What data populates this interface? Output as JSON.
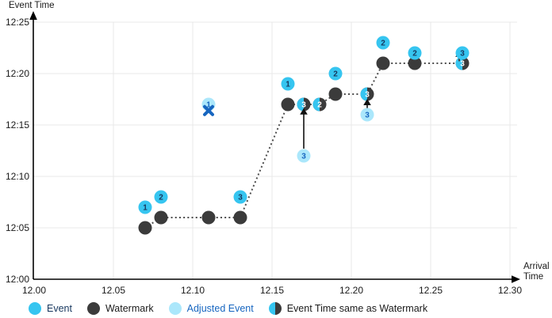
{
  "colors": {
    "event": "#36c5f0",
    "adjusted_event": "#abe7fb",
    "watermark": "#3b3b3b",
    "number_navy": "#17375e",
    "blue": "#1766c0",
    "grid": "#e8e8e8",
    "axis": "#000000",
    "dotted_line": "#4d4d4d",
    "text": "#1a1a1a"
  },
  "legend": {
    "items": [
      {
        "name": "event",
        "label": "Event",
        "label_color": "#17375e"
      },
      {
        "name": "watermark",
        "label": "Watermark",
        "label_color": "#1a1a1a"
      },
      {
        "name": "adjusted-event",
        "label": "Adjusted Event",
        "label_color": "#1766c0"
      },
      {
        "name": "event-time-same-as-watermark",
        "label": "Event Time same as Watermark",
        "label_color": "#1a1a1a"
      }
    ]
  },
  "chart_data": {
    "type": "scatter",
    "title": "",
    "x_axis": {
      "label": "Arrival Time",
      "tick_labels": [
        "12.00",
        "12.05",
        "12.10",
        "12.15",
        "12.20",
        "12.25",
        "12.30"
      ],
      "tick_minutes": [
        0,
        5,
        10,
        15,
        20,
        25,
        30
      ],
      "range_minutes": [
        0,
        30
      ]
    },
    "y_axis": {
      "label": "Event Time",
      "tick_labels": [
        "12:00",
        "12:05",
        "12:10",
        "12:15",
        "12:20",
        "12:25"
      ],
      "tick_minutes": [
        0,
        5,
        10,
        15,
        20,
        25
      ],
      "range_minutes": [
        0,
        25
      ]
    },
    "grid": true,
    "legend_position": "bottom",
    "watermark_line": {
      "style": "dotted",
      "points_min": [
        [
          7,
          5
        ],
        [
          8,
          6
        ],
        [
          11,
          6
        ],
        [
          13,
          6
        ],
        [
          16,
          17
        ],
        [
          17,
          17
        ],
        [
          18,
          17
        ],
        [
          19,
          18
        ],
        [
          21,
          18
        ],
        [
          22,
          21
        ],
        [
          24,
          21
        ],
        [
          27,
          21
        ]
      ]
    },
    "events": [
      {
        "label": "1",
        "arrival": "12.07",
        "event_time": "12:07",
        "arrival_min": 7,
        "event_min": 7
      },
      {
        "label": "2",
        "arrival": "12.08",
        "event_time": "12:08",
        "arrival_min": 8,
        "event_min": 8
      },
      {
        "label": "3",
        "arrival": "12.13",
        "event_time": "12:08",
        "arrival_min": 13,
        "event_min": 8
      },
      {
        "label": "1",
        "arrival": "12.16",
        "event_time": "12:19",
        "arrival_min": 16,
        "event_min": 19
      },
      {
        "label": "2",
        "arrival": "12.19",
        "event_time": "12:20",
        "arrival_min": 19,
        "event_min": 20
      },
      {
        "label": "2",
        "arrival": "12.22",
        "event_time": "12:23",
        "arrival_min": 22,
        "event_min": 23
      },
      {
        "label": "2",
        "arrival": "12.24",
        "event_time": "12:22",
        "arrival_min": 24,
        "event_min": 22
      },
      {
        "label": "3",
        "arrival": "12.27",
        "event_time": "12:22",
        "arrival_min": 27,
        "event_min": 22
      }
    ],
    "watermarks": [
      {
        "arrival": "12.07",
        "event_time": "12:05",
        "arrival_min": 7,
        "event_min": 5
      },
      {
        "arrival": "12.08",
        "event_time": "12:06",
        "arrival_min": 8,
        "event_min": 6
      },
      {
        "arrival": "12.11",
        "event_time": "12:06",
        "arrival_min": 11,
        "event_min": 6
      },
      {
        "arrival": "12.13",
        "event_time": "12:06",
        "arrival_min": 13,
        "event_min": 6
      },
      {
        "arrival": "12.16",
        "event_time": "12:17",
        "arrival_min": 16,
        "event_min": 17
      },
      {
        "arrival": "12.19",
        "event_time": "12:18",
        "arrival_min": 19,
        "event_min": 18
      },
      {
        "arrival": "12.22",
        "event_time": "12:21",
        "arrival_min": 22,
        "event_min": 21
      },
      {
        "arrival": "12.24",
        "event_time": "12:21",
        "arrival_min": 24,
        "event_min": 21
      }
    ],
    "same_as_watermark": [
      {
        "label": "3",
        "arrival": "12.17",
        "event_time": "12:17",
        "arrival_min": 17,
        "event_min": 17
      },
      {
        "label": "2",
        "arrival": "12.18",
        "event_time": "12:17",
        "arrival_min": 18,
        "event_min": 17
      },
      {
        "label": "3",
        "arrival": "12.21",
        "event_time": "12:18",
        "arrival_min": 21,
        "event_min": 18
      },
      {
        "label": "3",
        "arrival": "12.27",
        "event_time": "12:21",
        "arrival_min": 27,
        "event_min": 21
      }
    ],
    "adjusted_events": [
      {
        "label": "3",
        "arrival": "12.17",
        "event_time": "12:12",
        "arrival_min": 17,
        "event_min": 12
      },
      {
        "label": "3",
        "arrival": "12.21",
        "event_time": "12:16",
        "arrival_min": 21,
        "event_min": 16
      },
      {
        "label": "1",
        "arrival": "12.11",
        "event_time": "12:17",
        "arrival_min": 11,
        "event_min": 17,
        "dropped": true
      }
    ],
    "dropped_x": {
      "arrival_min": 11,
      "event_min": 16.4
    },
    "adjust_arrows": [
      {
        "x_min": 17,
        "from_min": 12.7,
        "to_min": 16.1
      },
      {
        "x_min": 21,
        "from_min": 16.6,
        "to_min": 17.0
      },
      {
        "x_min": 26.8,
        "from_min": 21.2,
        "to_min": 21.7
      }
    ]
  }
}
